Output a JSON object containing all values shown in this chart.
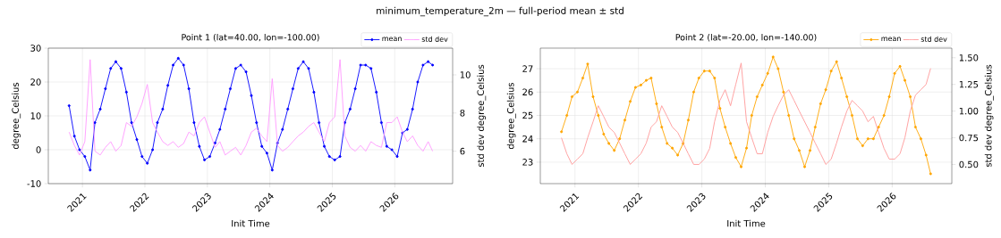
{
  "chart_data": [
    {
      "type": "line",
      "title": "Point 1 (lat=40.00, lon=-100.00)",
      "xlabel": "Init Time",
      "ylabel": "degree_Celsius",
      "y2label": "std dev degree_Celsius",
      "annotations": [
        "minimum_temperature_2m — full-period mean ± std"
      ],
      "x": [
        "2020-10-15",
        "2020-11-15",
        "2020-12-15",
        "2021-01-15",
        "2021-02-15",
        "2021-03-15",
        "2021-04-15",
        "2021-05-15",
        "2021-06-15",
        "2021-07-15",
        "2021-08-15",
        "2021-09-15",
        "2021-10-15",
        "2021-11-15",
        "2021-12-15",
        "2022-01-15",
        "2022-02-15",
        "2022-03-15",
        "2022-04-15",
        "2022-05-15",
        "2022-06-15",
        "2022-07-15",
        "2022-08-15",
        "2022-09-15",
        "2022-10-15",
        "2022-11-15",
        "2022-12-15",
        "2023-01-15",
        "2023-02-15",
        "2023-03-15",
        "2023-04-15",
        "2023-05-15",
        "2023-06-15",
        "2023-07-15",
        "2023-08-15",
        "2023-09-15",
        "2023-10-15",
        "2023-11-15",
        "2023-12-15",
        "2024-01-15",
        "2024-02-15",
        "2024-03-15",
        "2024-04-15",
        "2024-05-15",
        "2024-06-15",
        "2024-07-15",
        "2024-08-15",
        "2024-09-15",
        "2024-10-15",
        "2024-11-15",
        "2024-12-15",
        "2025-01-15",
        "2025-02-15",
        "2025-03-15",
        "2025-04-15",
        "2025-05-15",
        "2025-06-15",
        "2025-07-15",
        "2025-08-15",
        "2025-09-15",
        "2025-10-15",
        "2025-11-15",
        "2025-12-15",
        "2026-01-15",
        "2026-02-15",
        "2026-03-15",
        "2026-04-15",
        "2026-05-15",
        "2026-06-15",
        "2026-07-15",
        "2026-08-10"
      ],
      "series": [
        {
          "name": "mean",
          "color": "#0000ff",
          "marker": "circle",
          "values": [
            13,
            4,
            0,
            -2,
            -6,
            8,
            12,
            18,
            24,
            26,
            24,
            17,
            8,
            3,
            -2,
            -4,
            0,
            8,
            12,
            19,
            25,
            27,
            25,
            18,
            8,
            1,
            -3,
            -2,
            2,
            6,
            12,
            18,
            24,
            25,
            23,
            16,
            8,
            1,
            -1,
            -6,
            2,
            6,
            12,
            18,
            24,
            26,
            24,
            17,
            8,
            1,
            -2,
            -3,
            -2,
            8,
            12,
            18,
            25,
            25,
            24,
            17,
            8,
            1,
            0,
            -2,
            5,
            6,
            12,
            20,
            25,
            26,
            25
          ]
        },
        {
          "name": "std dev",
          "color": "#ff99ff",
          "axis": "y2",
          "values": [
            7,
            6.3,
            5.8,
            6.5,
            10.8,
            6,
            5.8,
            6.2,
            6.5,
            6,
            6.3,
            7.5,
            7.3,
            7.8,
            8.5,
            9.5,
            7.5,
            7,
            6.5,
            6.3,
            6.5,
            6.2,
            6.4,
            7,
            6.8,
            7.5,
            7.8,
            7,
            6.2,
            6.5,
            5.8,
            6,
            6.2,
            5.8,
            6.3,
            7,
            7.2,
            6.8,
            6.5,
            9.8,
            6.3,
            6,
            6.2,
            6.5,
            6.8,
            7,
            7.3,
            7.5,
            7,
            6.5,
            7.5,
            7.8,
            10.8,
            6.8,
            6.2,
            6,
            6.3,
            6,
            6.5,
            6.3,
            6.2,
            7.5,
            7.5,
            7.8,
            7,
            6.5,
            6.8,
            6.3,
            6,
            6.5,
            6
          ]
        }
      ],
      "xlim": [
        "2020-06-15",
        "2026-12-05"
      ],
      "xticks": [
        {
          "value": "2021-01-01",
          "label": "2021"
        },
        {
          "value": "2022-01-01",
          "label": "2022"
        },
        {
          "value": "2023-01-01",
          "label": "2023"
        },
        {
          "value": "2024-01-01",
          "label": "2024"
        },
        {
          "value": "2025-01-01",
          "label": "2025"
        },
        {
          "value": "2026-01-01",
          "label": "2026"
        }
      ],
      "ylim": [
        -10,
        30
      ],
      "yticks": [
        -10,
        0,
        10,
        20,
        30
      ],
      "y2lim": [
        4.3,
        11.4
      ],
      "y2ticks": [
        6,
        8,
        10
      ],
      "grid": true,
      "legend": "top right"
    },
    {
      "type": "line",
      "title": "Point 2 (lat=-20.00, lon=-140.00)",
      "xlabel": "Init Time",
      "ylabel": "degree_Celsius",
      "y2label": "std dev degree_Celsius",
      "x": [
        "2020-10-15",
        "2020-11-15",
        "2020-12-15",
        "2021-01-15",
        "2021-02-15",
        "2021-03-15",
        "2021-04-15",
        "2021-05-15",
        "2021-06-15",
        "2021-07-15",
        "2021-08-15",
        "2021-09-15",
        "2021-10-15",
        "2021-11-15",
        "2021-12-15",
        "2022-01-15",
        "2022-02-15",
        "2022-03-15",
        "2022-04-15",
        "2022-05-15",
        "2022-06-15",
        "2022-07-15",
        "2022-08-15",
        "2022-09-15",
        "2022-10-15",
        "2022-11-15",
        "2022-12-15",
        "2023-01-15",
        "2023-02-15",
        "2023-03-15",
        "2023-04-15",
        "2023-05-15",
        "2023-06-15",
        "2023-07-15",
        "2023-08-15",
        "2023-09-15",
        "2023-10-15",
        "2023-11-15",
        "2023-12-15",
        "2024-01-15",
        "2024-02-15",
        "2024-03-15",
        "2024-04-15",
        "2024-05-15",
        "2024-06-15",
        "2024-07-15",
        "2024-08-15",
        "2024-09-15",
        "2024-10-15",
        "2024-11-15",
        "2024-12-15",
        "2025-01-15",
        "2025-02-15",
        "2025-03-15",
        "2025-04-15",
        "2025-05-15",
        "2025-06-15",
        "2025-07-15",
        "2025-08-15",
        "2025-09-15",
        "2025-10-15",
        "2025-11-15",
        "2025-12-15",
        "2026-01-15",
        "2026-02-15",
        "2026-03-15",
        "2026-04-15",
        "2026-05-15",
        "2026-06-15",
        "2026-07-15",
        "2026-08-10"
      ],
      "series": [
        {
          "name": "mean",
          "color": "#ffa500",
          "marker": "circle",
          "values": [
            24.3,
            25,
            25.8,
            26,
            26.6,
            27.2,
            25.8,
            25,
            24.2,
            23.8,
            23.5,
            24,
            24.8,
            25.6,
            26.2,
            26.3,
            26.5,
            26.6,
            25.5,
            24.5,
            23.8,
            23.6,
            23.3,
            23.8,
            24.8,
            26,
            26.6,
            26.9,
            26.9,
            26.6,
            25.3,
            24.5,
            23.8,
            23.2,
            22.8,
            23.6,
            25,
            25.8,
            26.3,
            26.8,
            27.5,
            27,
            26,
            25,
            24,
            23.5,
            22.8,
            23.5,
            24.5,
            25.5,
            26.1,
            26.9,
            27.3,
            26.6,
            25.8,
            25,
            24,
            23.7,
            24,
            24,
            24.5,
            25,
            25.8,
            26.8,
            27.1,
            26.5,
            25.8,
            24.5,
            24,
            23.3,
            22.5
          ]
        },
        {
          "name": "std dev",
          "color": "#ff9999",
          "axis": "y2",
          "values": [
            0.75,
            0.6,
            0.5,
            0.55,
            0.6,
            0.75,
            0.9,
            1.05,
            0.95,
            0.85,
            0.8,
            0.7,
            0.6,
            0.5,
            0.55,
            0.6,
            0.7,
            0.85,
            0.9,
            1.05,
            0.95,
            0.85,
            0.8,
            0.7,
            0.6,
            0.5,
            0.5,
            0.55,
            0.65,
            0.9,
            1.1,
            1.2,
            1.05,
            1.25,
            1.45,
            0.9,
            0.75,
            0.6,
            0.6,
            0.8,
            0.95,
            1.05,
            1.15,
            1.2,
            1.1,
            1,
            0.9,
            0.8,
            0.7,
            0.6,
            0.5,
            0.55,
            0.7,
            0.85,
            1,
            1.1,
            1.05,
            1,
            0.9,
            0.95,
            0.8,
            0.65,
            0.55,
            0.55,
            0.6,
            0.75,
            1,
            1.15,
            1.2,
            1.25,
            1.4
          ]
        }
      ],
      "xlim": [
        "2020-06-15",
        "2026-12-10"
      ],
      "xticks": [
        {
          "value": "2021-01-01",
          "label": "2021"
        },
        {
          "value": "2022-01-01",
          "label": "2022"
        },
        {
          "value": "2023-01-01",
          "label": "2023"
        },
        {
          "value": "2024-01-01",
          "label": "2024"
        },
        {
          "value": "2025-01-01",
          "label": "2025"
        },
        {
          "value": "2026-01-01",
          "label": "2026"
        }
      ],
      "ylim": [
        22.08,
        27.88
      ],
      "yticks": [
        23,
        24,
        25,
        26,
        27
      ],
      "y2lim": [
        0.32,
        1.59
      ],
      "y2ticks": [
        {
          "value": 0.5,
          "label": "0.50"
        },
        {
          "value": 0.75,
          "label": "0.75"
        },
        {
          "value": 1.0,
          "label": "1.00"
        },
        {
          "value": 1.25,
          "label": "1.25"
        },
        {
          "value": 1.5,
          "label": "1.50"
        }
      ],
      "grid": true,
      "legend": "top right"
    }
  ]
}
